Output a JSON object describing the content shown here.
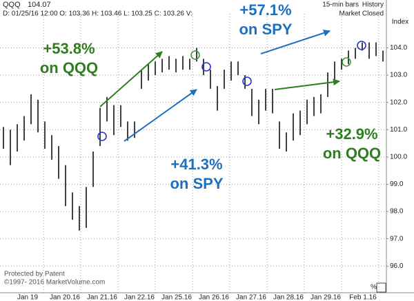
{
  "chart_data": {
    "type": "ohlc",
    "title": "QQQ",
    "last_price": "104.07",
    "info_line": "D: 01/25/16 12:00  O: 103.36  H: 103.46  L: 103.25  C: 103.26  V:",
    "bar_setting": "15-min bars",
    "history_label": "History",
    "status": "Market Closed",
    "y_axis_label": "Index",
    "footer_lines": [
      "Protected by Patent",
      "©1997- 2016 MarketVolume.com"
    ],
    "corner_label": "%",
    "categories": [
      "Jan 19",
      "Jan 20.16",
      "Jan 21.16",
      "Jan 22.16",
      "Jan 25.16",
      "Jan 26.16",
      "Jan 27.16",
      "Jan 28.16",
      "Jan 29.16",
      "Feb 1.16"
    ],
    "series": [
      {
        "name": "QQQ",
        "color": "#000000",
        "low": [
          100.3,
          99.7,
          100.2,
          100.6,
          101.2,
          100.9,
          100.3,
          99.9,
          99.2,
          98.2,
          97.7,
          97.3,
          97.4,
          98.9,
          100.4,
          101.3,
          100.8,
          101.1,
          100.6,
          100.7,
          102.5,
          102.8,
          103.0,
          103.1,
          103.2,
          103.1,
          103.2,
          103.2,
          103.5,
          103.0,
          102.5,
          101.7,
          102.5,
          102.8,
          103.0,
          102.5,
          101.5,
          101.2,
          101.7,
          101.6,
          100.3,
          100.2,
          100.6,
          100.8,
          101.2,
          101.5,
          101.6,
          102.2,
          102.85,
          103.2,
          103.4,
          103.6,
          103.9,
          103.6,
          103.7,
          103.5
        ],
        "high": [
          101.1,
          101.0,
          101.2,
          101.5,
          102.3,
          102.1,
          101.3,
          100.8,
          100.4,
          99.7,
          98.7,
          98.2,
          98.9,
          100.2,
          101.8,
          102.2,
          101.9,
          101.9,
          101.3,
          101.3,
          103.2,
          103.4,
          103.5,
          103.6,
          103.7,
          103.6,
          103.7,
          103.6,
          104.0,
          103.6,
          103.2,
          102.6,
          103.2,
          103.5,
          103.5,
          103.0,
          102.5,
          102.1,
          102.5,
          102.5,
          101.3,
          100.9,
          101.6,
          101.7,
          102.1,
          102.2,
          102.3,
          103.1,
          103.5,
          103.6,
          103.9,
          104.0,
          104.2,
          104.2,
          104.2,
          103.9
        ]
      }
    ],
    "ylim": [
      95.25,
      105.25
    ],
    "yticks": [
      {
        "value": 96,
        "label": "96.0"
      },
      {
        "value": 97,
        "label": "97.0"
      },
      {
        "value": 98,
        "label": "98.0"
      },
      {
        "value": 99,
        "label": "99.0"
      },
      {
        "value": 100,
        "label": "100.0"
      },
      {
        "value": 101,
        "label": "101.0"
      },
      {
        "value": 102,
        "label": "102.0"
      },
      {
        "value": 103,
        "label": "103.0"
      },
      {
        "value": 104,
        "label": "104.0"
      }
    ],
    "grid": true,
    "annotations": [
      {
        "lines": [
          "+57.1%",
          "on SPY"
        ],
        "color": "#1f6fbf"
      },
      {
        "lines": [
          "+53.8%",
          "on QQQ"
        ],
        "color": "#2e7d1e"
      },
      {
        "lines": [
          "+41.3%",
          "on SPY"
        ],
        "color": "#1f6fbf"
      },
      {
        "lines": [
          "+32.9%",
          "on QQQ"
        ],
        "color": "#2e7d1e"
      }
    ]
  }
}
